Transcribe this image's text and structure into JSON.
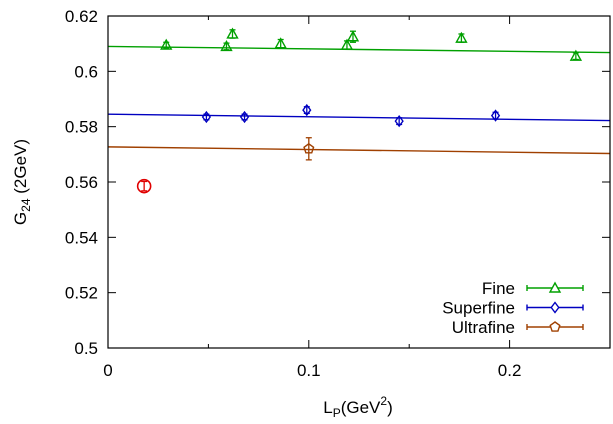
{
  "chart_data": {
    "type": "scatter",
    "title": "",
    "xlabel": {
      "main": "L",
      "sub": "P",
      "rest": "(GeV",
      "sup": "2",
      "close": ")"
    },
    "ylabel": {
      "main": "G",
      "sub": "24",
      "rest": " (2GeV)"
    },
    "xlim": [
      0,
      0.25
    ],
    "ylim": [
      0.5,
      0.62
    ],
    "xticks": [
      {
        "value": 0,
        "label": "0"
      },
      {
        "value": 0.1,
        "label": "0.1"
      },
      {
        "value": 0.2,
        "label": "0.2"
      }
    ],
    "yticks": [
      {
        "value": 0.5,
        "label": "0.5"
      },
      {
        "value": 0.52,
        "label": "0.52"
      },
      {
        "value": 0.54,
        "label": "0.54"
      },
      {
        "value": 0.56,
        "label": "0.56"
      },
      {
        "value": 0.58,
        "label": "0.58"
      },
      {
        "value": 0.6,
        "label": "0.6"
      },
      {
        "value": 0.62,
        "label": "0.62"
      }
    ],
    "legend_position": "bottom-right",
    "series": [
      {
        "name": "Fine",
        "color": "#00a000",
        "marker": "triangle",
        "points": [
          {
            "x": 0.029,
            "y": 0.6095,
            "err": 0.001
          },
          {
            "x": 0.059,
            "y": 0.609,
            "err": 0.0012
          },
          {
            "x": 0.062,
            "y": 0.6135,
            "err": 0.0015
          },
          {
            "x": 0.086,
            "y": 0.61,
            "err": 0.0015
          },
          {
            "x": 0.119,
            "y": 0.6095,
            "err": 0.0015
          },
          {
            "x": 0.122,
            "y": 0.6125,
            "err": 0.002
          },
          {
            "x": 0.176,
            "y": 0.612,
            "err": 0.0015
          },
          {
            "x": 0.233,
            "y": 0.6055,
            "err": 0.0012
          }
        ],
        "fit": {
          "x0": 0,
          "y0": 0.609,
          "x1": 0.25,
          "y1": 0.6068
        }
      },
      {
        "name": "Superfine",
        "color": "#0000c0",
        "marker": "diamond",
        "points": [
          {
            "x": 0.049,
            "y": 0.5835,
            "err": 0.001
          },
          {
            "x": 0.068,
            "y": 0.5835,
            "err": 0.001
          },
          {
            "x": 0.099,
            "y": 0.586,
            "err": 0.0012
          },
          {
            "x": 0.145,
            "y": 0.582,
            "err": 0.0012
          },
          {
            "x": 0.193,
            "y": 0.584,
            "err": 0.0012
          }
        ],
        "fit": {
          "x0": 0,
          "y0": 0.5845,
          "x1": 0.25,
          "y1": 0.5822
        }
      },
      {
        "name": "Ultrafine",
        "color": "#a04000",
        "marker": "pentagon",
        "points": [
          {
            "x": 0.1,
            "y": 0.572,
            "err": 0.004
          }
        ],
        "fit": {
          "x0": 0,
          "y0": 0.5727,
          "x1": 0.25,
          "y1": 0.5703
        }
      }
    ],
    "extrapolated_point": {
      "x": 0.018,
      "y": 0.5585,
      "err": 0.0017,
      "color": "#e00000",
      "marker": "circle"
    }
  }
}
